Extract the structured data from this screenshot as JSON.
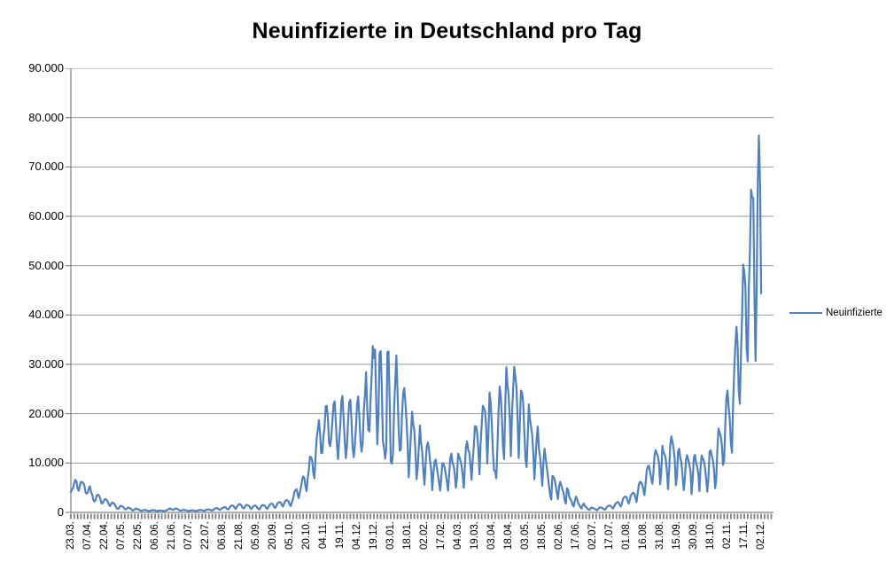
{
  "chart_data": {
    "type": "line",
    "title": "Neuinfizierte in Deutschland pro Tag",
    "xlabel": "",
    "ylabel": "",
    "ylim": [
      0,
      90000
    ],
    "grid": "horizontal",
    "legend_position": "right",
    "colors": {
      "line": "#4F81BD",
      "gridline": "#999999",
      "axis": "#808080",
      "tick_band": "#7F7F7F",
      "text": "#000000",
      "background": "#FFFFFF"
    },
    "y_ticks": [
      0,
      10000,
      20000,
      30000,
      40000,
      50000,
      60000,
      70000,
      80000,
      90000
    ],
    "y_tick_labels": [
      "0",
      "10.000",
      "20.000",
      "30.000",
      "40.000",
      "50.000",
      "60.000",
      "70.000",
      "80.000",
      "90.000"
    ],
    "x_tick_labels": [
      "23.03.",
      "07.04.",
      "22.04.",
      "07.05.",
      "22.05.",
      "06.06.",
      "21.06.",
      "07.07.",
      "22.07.",
      "06.08.",
      "21.08.",
      "05.09.",
      "20.09.",
      "05.10.",
      "20.10.",
      "04.11.",
      "19.11.",
      "04.12.",
      "19.12.",
      "03.01.",
      "18.01.",
      "02.02.",
      "17.02.",
      "04.03.",
      "19.03.",
      "03.04.",
      "18.04.",
      "03.05.",
      "18.05.",
      "02.06.",
      "17.06.",
      "02.07.",
      "17.07.",
      "01.08.",
      "16.08.",
      "31.08.",
      "15.09.",
      "30.09.",
      "18.10.",
      "02.11.",
      "17.11.",
      "02.12."
    ],
    "x_label_step": 15,
    "x_total_slots": 627,
    "series": [
      {
        "name": "Neuinfizierte",
        "color": "#4F81BD",
        "values": [
          4100,
          4700,
          4900,
          6000,
          6600,
          6300,
          4800,
          4400,
          5500,
          6200,
          6100,
          6000,
          5500,
          4100,
          3800,
          4000,
          4900,
          5300,
          4100,
          3600,
          2500,
          2200,
          2500,
          3400,
          3600,
          3400,
          3000,
          2000,
          1800,
          2200,
          2600,
          2700,
          2500,
          2100,
          1500,
          1300,
          1800,
          2000,
          1900,
          1600,
          1200,
          800,
          700,
          900,
          1300,
          1300,
          1200,
          1000,
          700,
          600,
          800,
          1000,
          900,
          800,
          600,
          400,
          500,
          600,
          800,
          700,
          600,
          500,
          400,
          300,
          400,
          500,
          500,
          450,
          350,
          300,
          250,
          350,
          400,
          500,
          450,
          400,
          300,
          250,
          350,
          400,
          400,
          350,
          300,
          250,
          300,
          400,
          500,
          600,
          800,
          700,
          600,
          500,
          600,
          800,
          800,
          700,
          500,
          400,
          350,
          450,
          500,
          500,
          450,
          400,
          300,
          250,
          350,
          400,
          450,
          400,
          350,
          250,
          300,
          350,
          450,
          500,
          500,
          450,
          350,
          300,
          450,
          550,
          600,
          600,
          550,
          400,
          400,
          550,
          700,
          800,
          900,
          800,
          600,
          500,
          700,
          900,
          1000,
          1100,
          1000,
          700,
          600,
          800,
          1200,
          1400,
          1400,
          1300,
          900,
          700,
          1200,
          1500,
          1700,
          1600,
          1400,
          900,
          800,
          1100,
          1500,
          1500,
          1400,
          1300,
          800,
          700,
          1100,
          1300,
          1400,
          1300,
          1000,
          700,
          600,
          1000,
          1400,
          1500,
          1400,
          1300,
          900,
          700,
          1100,
          1500,
          1700,
          1800,
          1600,
          1100,
          900,
          1300,
          1800,
          2000,
          2100,
          2000,
          1500,
          1200,
          1800,
          2300,
          2500,
          2400,
          2200,
          1500,
          1300,
          2100,
          2800,
          4000,
          4500,
          4700,
          3800,
          2900,
          4100,
          5100,
          6600,
          7300,
          7000,
          5300,
          4300,
          6900,
          8500,
          11300,
          11200,
          10500,
          8000,
          6900,
          11400,
          15000,
          16800,
          18700,
          16000,
          12000,
          12100,
          15400,
          17200,
          21500,
          21600,
          19000,
          14100,
          13400,
          15300,
          18500,
          21900,
          22500,
          18500,
          14000,
          10800,
          14400,
          17600,
          22600,
          23600,
          19000,
          14500,
          11000,
          13600,
          18600,
          22300,
          22800,
          18600,
          13100,
          11200,
          13600,
          17300,
          22000,
          23500,
          19500,
          14600,
          12300,
          14000,
          20800,
          23700,
          28400,
          21300,
          16700,
          16400,
          23000,
          27700,
          33700,
          31300,
          33000,
          22800,
          13800,
          19500,
          32200,
          32700,
          25500,
          14500,
          13000,
          10900,
          12900,
          32500,
          32600,
          22900,
          10300,
          9900,
          11900,
          21200,
          26400,
          31800,
          24700,
          16900,
          12500,
          12800,
          19600,
          24000,
          25200,
          22400,
          18700,
          13900,
          7100,
          11400,
          15900,
          20400,
          17900,
          16600,
          12300,
          6700,
          9000,
          13200,
          17600,
          14000,
          12300,
          8600,
          5600,
          9700,
          13200,
          14200,
          12900,
          10500,
          8600,
          4500,
          8000,
          10200,
          10700,
          9100,
          7700,
          6100,
          4400,
          7000,
          10000,
          9900,
          9100,
          7800,
          6200,
          4400,
          7500,
          11000,
          11900,
          10000,
          9500,
          7900,
          5000,
          7000,
          11900,
          11300,
          10600,
          9600,
          7700,
          5000,
          9100,
          13200,
          14400,
          12700,
          12100,
          9600,
          6600,
          10600,
          13400,
          17500,
          17400,
          16000,
          13000,
          7700,
          13700,
          17700,
          21600,
          21100,
          20500,
          17200,
          9900,
          15800,
          24300,
          22200,
          18100,
          12200,
          8500,
          8400,
          6900,
          13000,
          20400,
          25500,
          23800,
          19200,
          13200,
          10800,
          21700,
          29400,
          25800,
          23800,
          19200,
          11400,
          19800,
          24900,
          29500,
          27500,
          25400,
          18800,
          11000,
          17900,
          24700,
          24300,
          22200,
          16300,
          10900,
          9200,
          14900,
          21900,
          18900,
          17400,
          15700,
          12000,
          6700,
          10900,
          14900,
          17400,
          12900,
          11300,
          8500,
          5400,
          10200,
          12900,
          11000,
          9100,
          7400,
          5400,
          3500,
          2600,
          7400,
          7200,
          6700,
          5400,
          3900,
          2700,
          5300,
          6200,
          5400,
          4600,
          4000,
          2400,
          1800,
          4900,
          4600,
          3200,
          2700,
          2300,
          1500,
          1200,
          2400,
          3200,
          2700,
          1900,
          1500,
          1000,
          800,
          1500,
          1800,
          1300,
          1100,
          800,
          600,
          500,
          800,
          1000,
          900,
          800,
          700,
          500,
          450,
          700,
          1000,
          1000,
          950,
          800,
          600,
          550,
          900,
          1200,
          1300,
          1400,
          1300,
          1000,
          800,
          1200,
          1700,
          1900,
          2100,
          2000,
          1500,
          1200,
          1900,
          2800,
          3100,
          3200,
          3100,
          2400,
          1800,
          2500,
          3500,
          3800,
          4000,
          3800,
          3000,
          2100,
          3900,
          5600,
          6200,
          6100,
          5600,
          4700,
          3500,
          5700,
          8400,
          9300,
          9500,
          8300,
          7000,
          5800,
          8000,
          11600,
          12600,
          12000,
          11300,
          10000,
          5700,
          8300,
          13500,
          12100,
          11800,
          10800,
          8400,
          4700,
          8400,
          13600,
          15400,
          14300,
          12900,
          10900,
          5500,
          7300,
          12400,
          12900,
          11000,
          10000,
          7300,
          4500,
          6700,
          10600,
          11600,
          10700,
          9700,
          8500,
          3700,
          6700,
          11000,
          11700,
          10100,
          9200,
          7900,
          4300,
          9100,
          11500,
          11000,
          10400,
          9000,
          6800,
          4200,
          6900,
          12200,
          12600,
          11500,
          10600,
          8700,
          4900,
          6800,
          12900,
          17000,
          16100,
          15500,
          13700,
          9600,
          10500,
          17400,
          23200,
          24700,
          21500,
          19000,
          14100,
          12100,
          21800,
          28600,
          33900,
          37600,
          34000,
          24700,
          22000,
          32000,
          39700,
          50200,
          48600,
          45700,
          33500,
          30600,
          45300,
          52800,
          65400,
          63900,
          63700,
          44500,
          30700,
          45300,
          66900,
          76400,
          67100,
          44400
        ]
      }
    ]
  }
}
